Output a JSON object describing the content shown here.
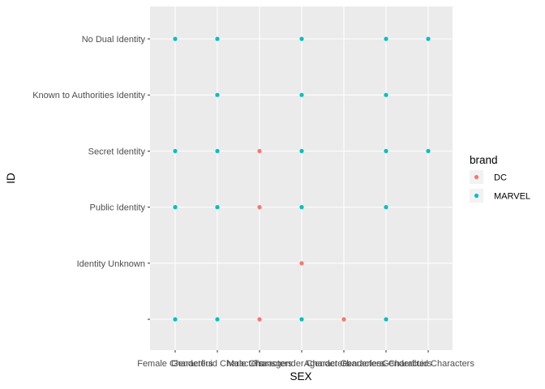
{
  "chart_data": {
    "type": "scatter",
    "xlabel": "SEX",
    "ylabel": "ID",
    "x_categories": [
      "Female Characters",
      "Genderfluid Characters",
      "Male Characters",
      "Transgender Characters",
      "Agender Characters",
      "Genderless Characters",
      "Genderfluid Characters"
    ],
    "y_categories": [
      "",
      "Identity Unknown",
      "Public Identity",
      "Secret Identity",
      "Known to Authorities Identity",
      "No Dual Identity"
    ],
    "legend_title": "brand",
    "grid": true,
    "legend_position": "right",
    "series": [
      {
        "name": "DC",
        "color": "#F8766D",
        "points": [
          {
            "x": "Male Characters",
            "y": "Secret Identity"
          },
          {
            "x": "Male Characters",
            "y": "Public Identity"
          },
          {
            "x": "Transgender Characters",
            "y": "Identity Unknown"
          },
          {
            "x": "Male Characters",
            "y": ""
          },
          {
            "x": "Agender Characters",
            "y": ""
          }
        ]
      },
      {
        "name": "MARVEL",
        "color": "#00BFC4",
        "points": [
          {
            "x": "Female Characters",
            "y": "No Dual Identity"
          },
          {
            "x": "Genderfluid Characters",
            "y": "No Dual Identity"
          },
          {
            "x": "Transgender Characters",
            "y": "No Dual Identity"
          },
          {
            "x": "Genderless Characters",
            "y": "No Dual Identity"
          },
          {
            "x": "Genderfluid Characters",
            "y": "No Dual Identity",
            "col": 6
          },
          {
            "x": "Genderfluid Characters",
            "y": "Known to Authorities Identity"
          },
          {
            "x": "Transgender Characters",
            "y": "Known to Authorities Identity"
          },
          {
            "x": "Genderless Characters",
            "y": "Known to Authorities Identity"
          },
          {
            "x": "Female Characters",
            "y": "Secret Identity"
          },
          {
            "x": "Genderfluid Characters",
            "y": "Secret Identity"
          },
          {
            "x": "Transgender Characters",
            "y": "Secret Identity"
          },
          {
            "x": "Genderless Characters",
            "y": "Secret Identity"
          },
          {
            "x": "Genderfluid Characters",
            "y": "Secret Identity",
            "col": 6
          },
          {
            "x": "Female Characters",
            "y": "Public Identity"
          },
          {
            "x": "Genderfluid Characters",
            "y": "Public Identity"
          },
          {
            "x": "Transgender Characters",
            "y": "Public Identity"
          },
          {
            "x": "Genderless Characters",
            "y": "Public Identity"
          },
          {
            "x": "Female Characters",
            "y": ""
          },
          {
            "x": "Genderfluid Characters",
            "y": ""
          },
          {
            "x": "Transgender Characters",
            "y": ""
          },
          {
            "x": "Genderless Characters",
            "y": ""
          }
        ]
      }
    ]
  }
}
